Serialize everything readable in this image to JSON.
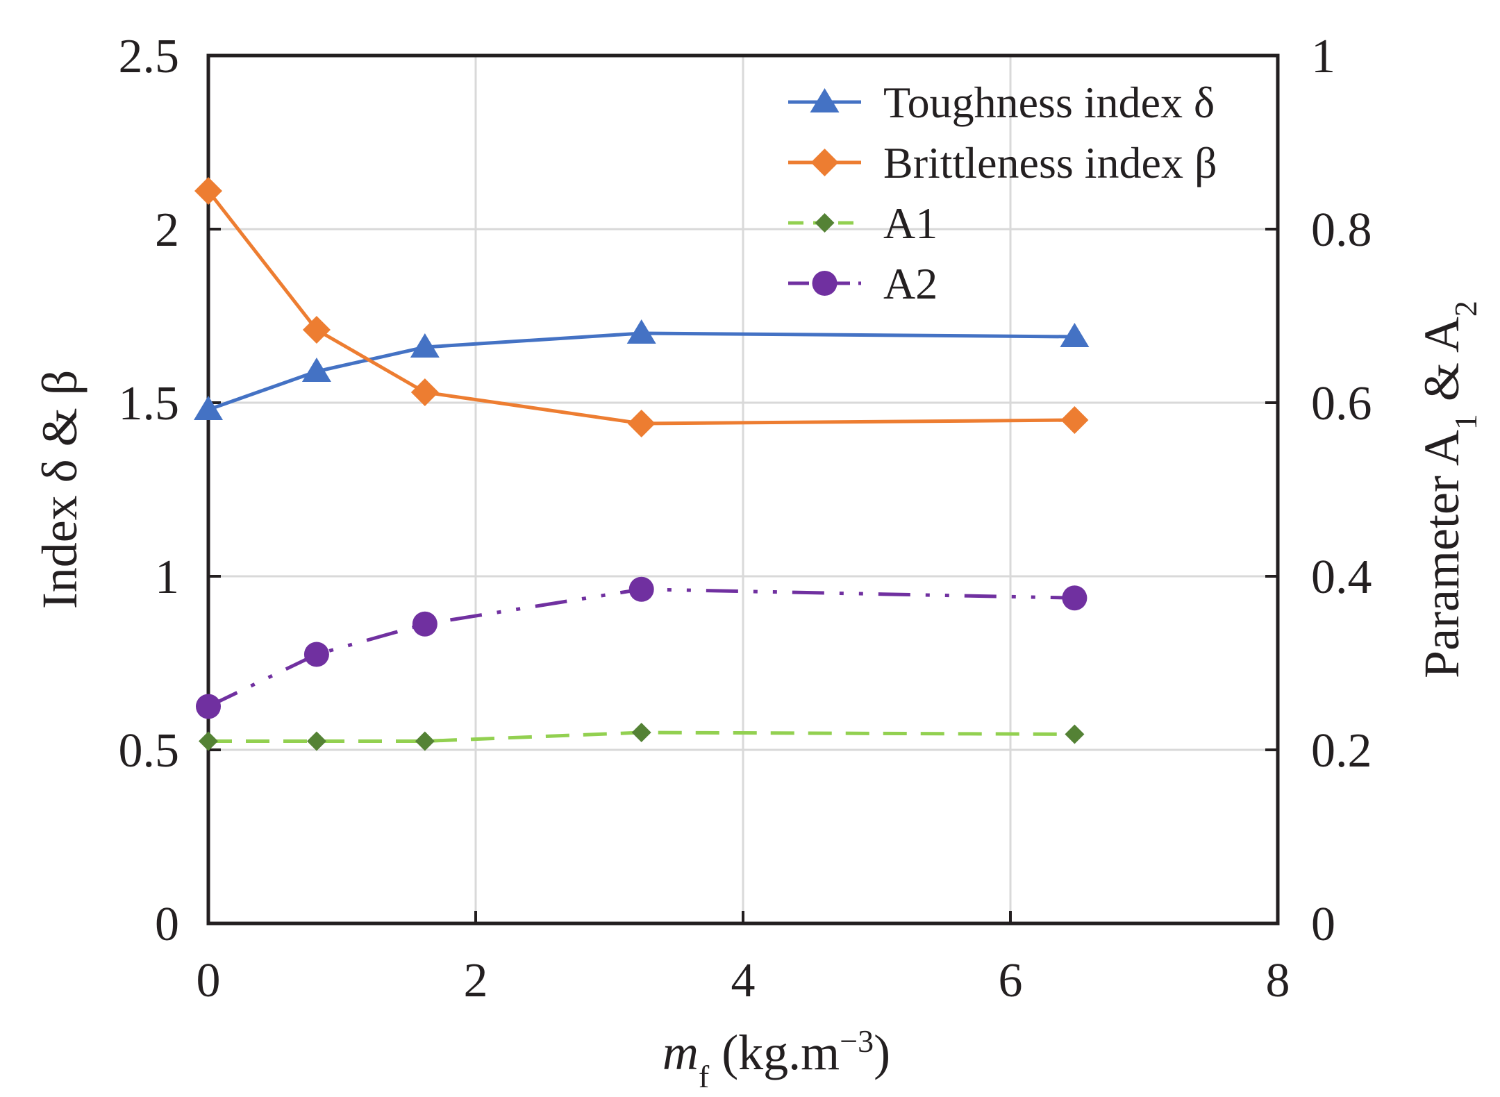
{
  "chart_data": {
    "type": "line",
    "x": [
      0,
      0.81,
      1.62,
      3.24,
      6.48
    ],
    "xlim": [
      0,
      8
    ],
    "xticks": [
      0,
      2,
      4,
      6,
      8
    ],
    "xlabel": {
      "variable": "m",
      "subscript": "f",
      "units_prefix": " (kg.m",
      "units_exponent": "−3",
      "units_suffix": ")"
    },
    "ylim_left": [
      0,
      2.5
    ],
    "yticks_left": [
      0,
      0.5,
      1,
      1.5,
      2,
      2.5
    ],
    "ylabel_left": "Index δ & β",
    "ylim_right": [
      0,
      1
    ],
    "yticks_right": [
      0,
      0.2,
      0.4,
      0.6,
      0.8,
      1
    ],
    "ylabel_right": {
      "text1": "Parameter A",
      "sub1": "1",
      "text2": " & A",
      "sub2": "2"
    },
    "grid": true,
    "legend_position": "top-right",
    "series": [
      {
        "name": "Toughness index δ",
        "axis": "left",
        "values": [
          1.48,
          1.59,
          1.66,
          1.7,
          1.69
        ],
        "color": "#4472c4",
        "marker": "triangle",
        "line_style": "solid"
      },
      {
        "name": "Brittleness index β",
        "axis": "left",
        "values": [
          2.11,
          1.71,
          1.53,
          1.44,
          1.45
        ],
        "color": "#ed7d31",
        "marker": "diamond",
        "line_style": "solid"
      },
      {
        "name": "A1",
        "axis": "right",
        "values": [
          0.21,
          0.21,
          0.21,
          0.22,
          0.218
        ],
        "color": "#92d050",
        "marker_color": "#548235",
        "marker": "small-diamond",
        "line_style": "dashed"
      },
      {
        "name": "A2",
        "axis": "right",
        "values": [
          0.25,
          0.31,
          0.345,
          0.385,
          0.375
        ],
        "color": "#7030a0",
        "marker": "circle",
        "line_style": "dash-dot-dot"
      }
    ]
  }
}
